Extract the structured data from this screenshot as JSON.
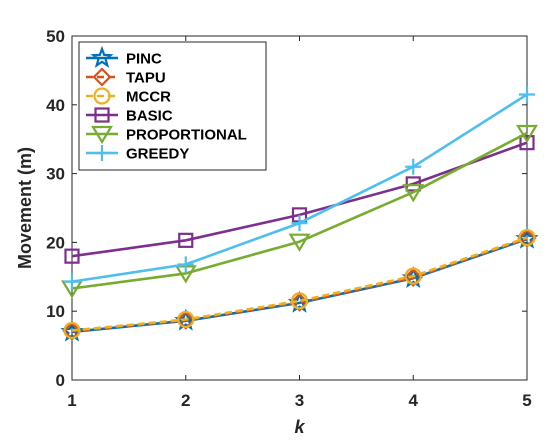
{
  "chart_data": {
    "type": "line",
    "xlabel": "k",
    "ylabel": "Movement (m)",
    "x": [
      1,
      2,
      3,
      4,
      5
    ],
    "xlim": [
      1,
      5
    ],
    "ylim": [
      0,
      50
    ],
    "xticks": [
      "1",
      "2",
      "3",
      "4",
      "5"
    ],
    "yticks": [
      "0",
      "10",
      "20",
      "30",
      "40",
      "50"
    ],
    "grid": false,
    "legend_position": "top-left",
    "series": [
      {
        "name": "PINC",
        "values": [
          7.0,
          8.6,
          11.2,
          14.8,
          20.5
        ],
        "color": "#0072BD",
        "marker": "star"
      },
      {
        "name": "TAPU",
        "values": [
          7.1,
          8.7,
          11.3,
          14.9,
          20.6
        ],
        "color": "#D95319",
        "marker": "diamond",
        "dash": true
      },
      {
        "name": "MCCR",
        "values": [
          7.2,
          8.8,
          11.5,
          15.1,
          20.7
        ],
        "color": "#EDB120",
        "marker": "circle",
        "dash": true
      },
      {
        "name": "BASIC",
        "values": [
          18.0,
          20.3,
          24.0,
          28.5,
          34.5
        ],
        "color": "#7E2F8E",
        "marker": "square"
      },
      {
        "name": "PROPORTIONAL",
        "values": [
          13.3,
          15.5,
          20.1,
          27.3,
          35.9
        ],
        "color": "#77AC30",
        "marker": "triangle-down"
      },
      {
        "name": "GREEDY",
        "values": [
          14.3,
          16.8,
          22.8,
          31.0,
          41.5
        ],
        "color": "#4DBEEE",
        "marker": "plus"
      }
    ]
  }
}
